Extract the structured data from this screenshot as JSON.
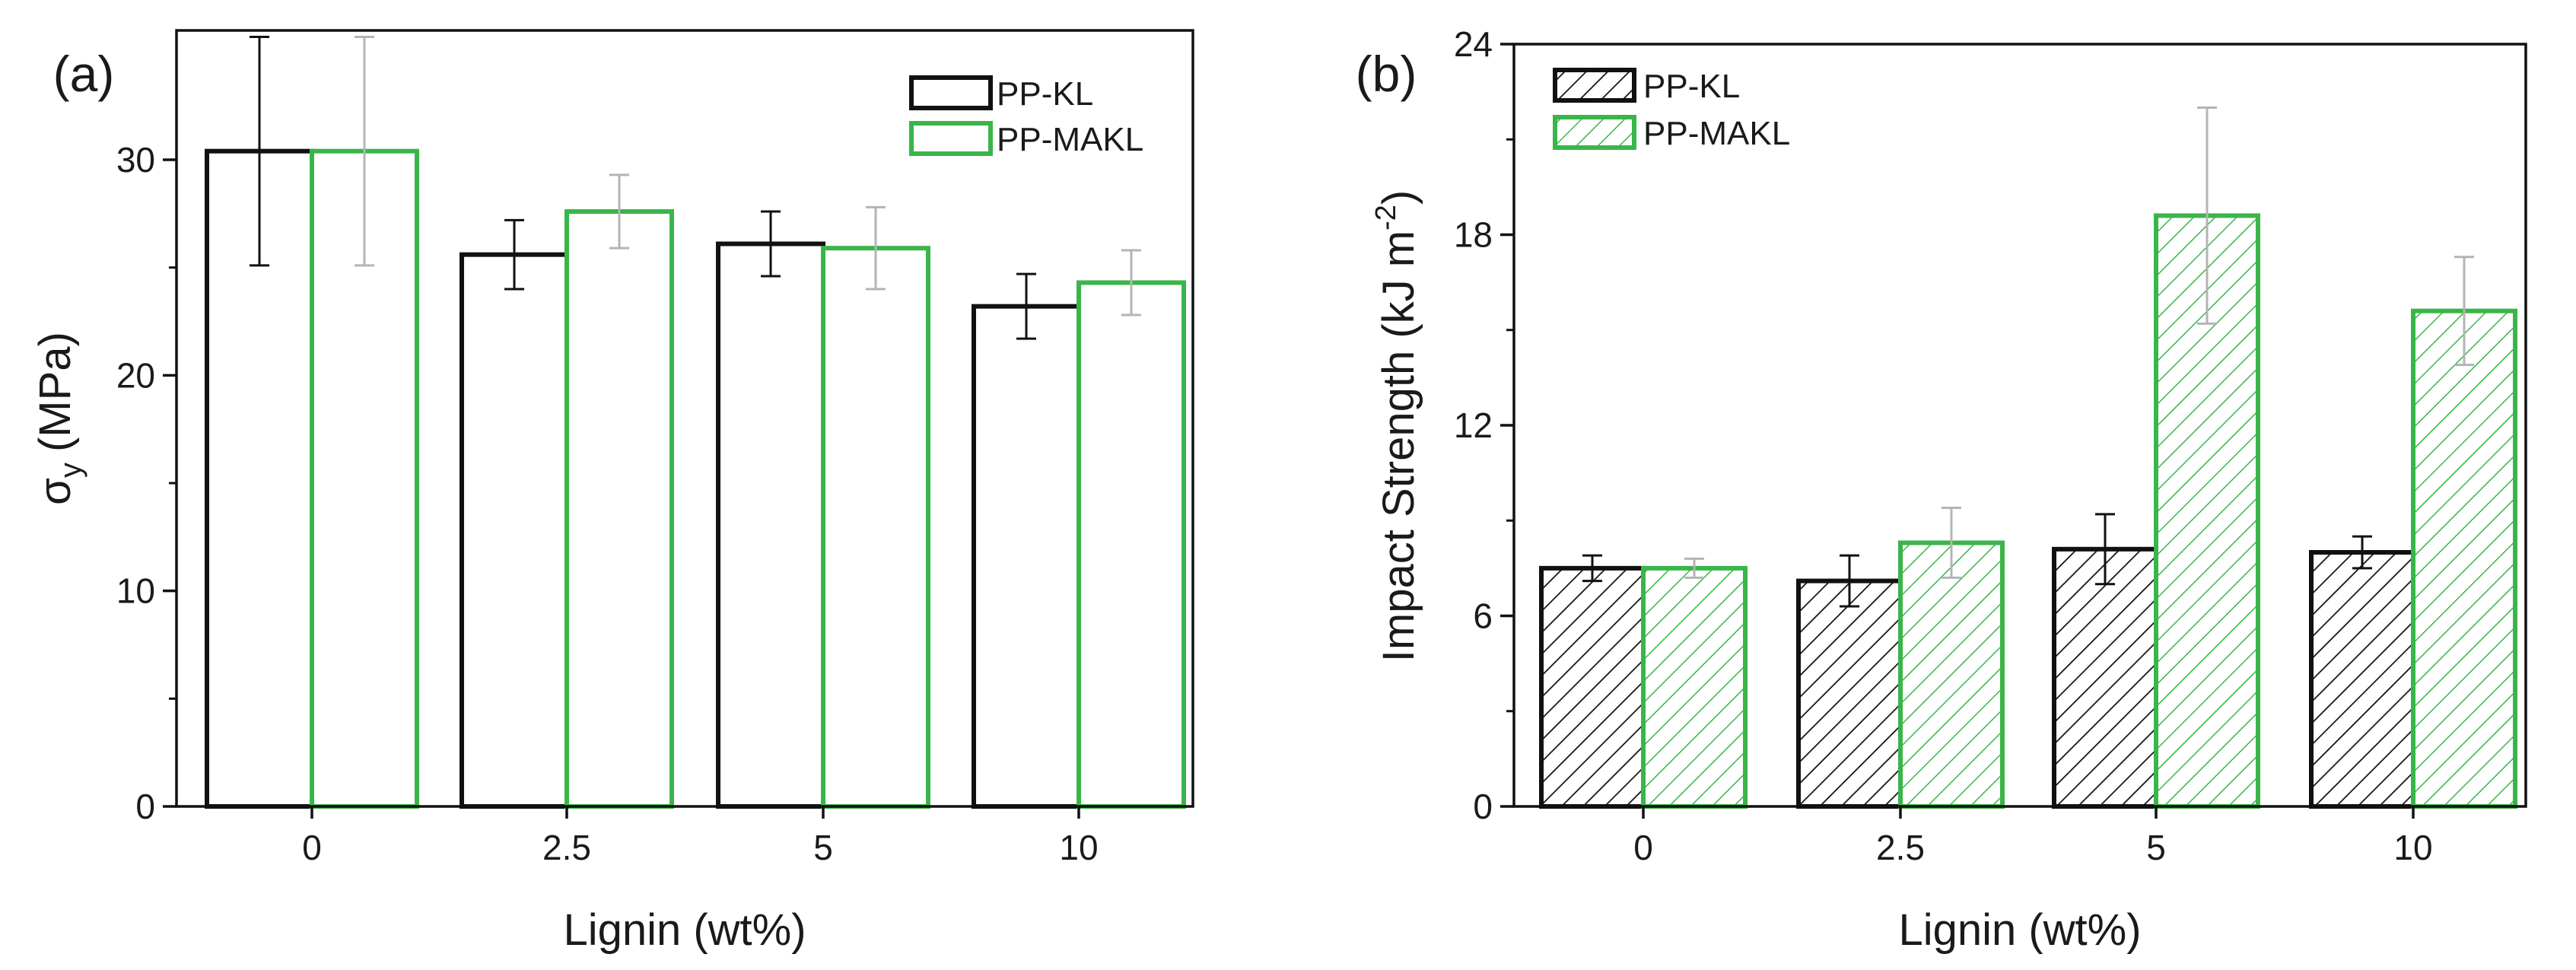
{
  "colors": {
    "kl": "#111111",
    "makl": "#3ab54a",
    "makl_err": "#b4b4b4",
    "kl_err": "#111111",
    "axis": "#111111",
    "text": "#1a1a1a"
  },
  "chart_data": [
    {
      "panel_label": "(a)",
      "type": "bar",
      "xlabel": "Lignin (wt%)",
      "ylabel": "σ",
      "ylabel_sub": "y",
      "ylabel_unit": "(MPa)",
      "ylim": [
        0,
        36
      ],
      "yticks": [
        0,
        10,
        20,
        30
      ],
      "categories": [
        "0",
        "2.5",
        "5",
        "10"
      ],
      "hatched": false,
      "legend_position": "top-right",
      "series": [
        {
          "name": "PP-KL",
          "values": [
            30.4,
            25.6,
            26.1,
            23.2
          ],
          "errors": [
            5.3,
            1.6,
            1.5,
            1.5
          ]
        },
        {
          "name": "PP-MAKL",
          "values": [
            30.4,
            27.6,
            25.9,
            24.3
          ],
          "errors": [
            5.3,
            1.7,
            1.9,
            1.5
          ]
        }
      ]
    },
    {
      "panel_label": "(b)",
      "type": "bar",
      "xlabel": "Lignin (wt%)",
      "ylabel": "Impact Strength (kJ m",
      "ylabel_sup": "-2",
      "ylabel_tail": ")",
      "ylim": [
        0,
        24
      ],
      "yticks": [
        0,
        6,
        12,
        18,
        24
      ],
      "categories": [
        "0",
        "2.5",
        "5",
        "10"
      ],
      "hatched": true,
      "legend_position": "top-left",
      "series": [
        {
          "name": "PP-KL",
          "values": [
            7.5,
            7.1,
            8.1,
            8.0
          ],
          "errors": [
            0.4,
            0.8,
            1.1,
            0.5
          ]
        },
        {
          "name": "PP-MAKL",
          "values": [
            7.5,
            8.3,
            18.6,
            15.6
          ],
          "errors": [
            0.3,
            1.1,
            3.4,
            1.7
          ]
        }
      ]
    }
  ]
}
